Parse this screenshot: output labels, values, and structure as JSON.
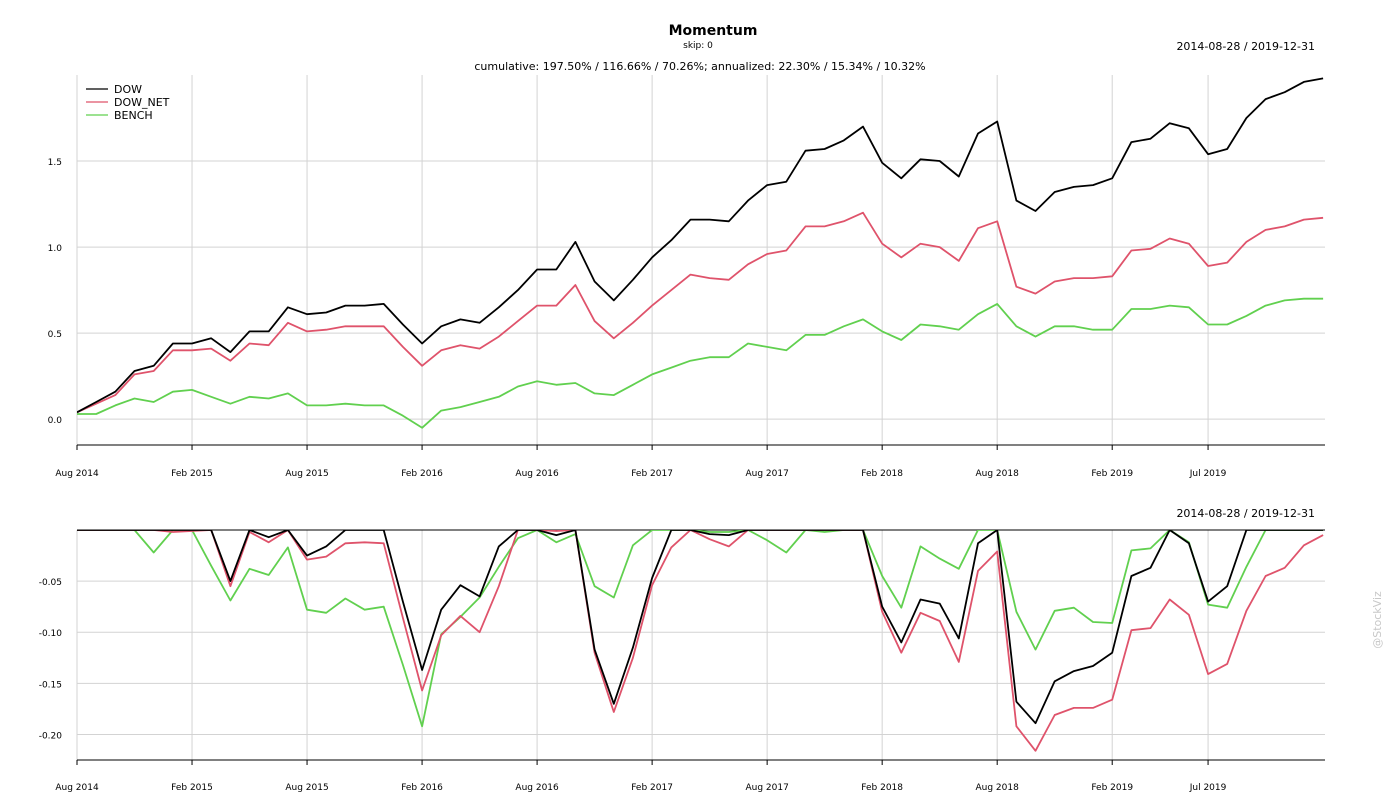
{
  "header": {
    "title": "Momentum",
    "subtitle": "skip: 0",
    "stats": "cumulative: 197.50% / 116.66% / 70.26%; annualized: 22.30% / 15.34% / 10.32%",
    "date_range_top": "2014-08-28 / 2019-12-31",
    "date_range_bottom": "2014-08-28 / 2019-12-31",
    "watermark": "@StockViz"
  },
  "colors": {
    "DOW": "#000000",
    "DOW_NET": "#df536b",
    "BENCH": "#61d04f",
    "grid": "#d3d3d3",
    "axis": "#000000"
  },
  "chart_data": [
    {
      "type": "line",
      "title": "Momentum",
      "subtitle": "skip: 0",
      "ylim": [
        -0.15,
        2.0
      ],
      "yticks": [
        0.0,
        0.5,
        1.0,
        1.5
      ],
      "ytick_labels": [
        "0.0",
        "0.5",
        "1.0",
        "1.5"
      ],
      "xlim": [
        0,
        65.1
      ],
      "xticks": [
        0,
        6,
        12,
        18,
        24,
        30,
        36,
        42,
        48,
        54,
        59
      ],
      "xtick_labels": [
        "Aug 2014",
        "Feb 2015",
        "Aug 2015",
        "Feb 2016",
        "Aug 2016",
        "Feb 2017",
        "Aug 2017",
        "Feb 2018",
        "Aug 2018",
        "Feb 2019",
        "Jul 2019"
      ],
      "legend_position": "top-left",
      "grid": true,
      "series": [
        {
          "name": "DOW",
          "x": [
            0,
            1,
            2,
            3,
            4,
            5,
            6,
            7,
            8,
            9,
            10,
            11,
            12,
            13,
            14,
            15,
            16,
            17,
            18,
            19,
            20,
            21,
            22,
            23,
            24,
            25,
            26,
            27,
            28,
            29,
            30,
            31,
            32,
            33,
            34,
            35,
            36,
            37,
            38,
            39,
            40,
            41,
            42,
            43,
            44,
            45,
            46,
            47,
            48,
            49,
            50,
            51,
            52,
            53,
            54,
            55,
            56,
            57,
            58,
            59,
            60,
            61,
            62,
            63,
            64,
            65
          ],
          "values": [
            0.04,
            0.1,
            0.16,
            0.28,
            0.31,
            0.44,
            0.44,
            0.47,
            0.39,
            0.51,
            0.51,
            0.65,
            0.61,
            0.62,
            0.66,
            0.66,
            0.67,
            0.55,
            0.44,
            0.54,
            0.58,
            0.56,
            0.65,
            0.75,
            0.87,
            0.87,
            1.03,
            0.8,
            0.69,
            0.81,
            0.94,
            1.04,
            1.16,
            1.16,
            1.15,
            1.27,
            1.36,
            1.38,
            1.56,
            1.57,
            1.62,
            1.7,
            1.49,
            1.4,
            1.51,
            1.5,
            1.41,
            1.66,
            1.73,
            1.27,
            1.21,
            1.32,
            1.35,
            1.36,
            1.4,
            1.61,
            1.63,
            1.72,
            1.69,
            1.54,
            1.57,
            1.75,
            1.86,
            1.9,
            1.96,
            1.98
          ]
        },
        {
          "name": "DOW_NET",
          "x": [
            0,
            1,
            2,
            3,
            4,
            5,
            6,
            7,
            8,
            9,
            10,
            11,
            12,
            13,
            14,
            15,
            16,
            17,
            18,
            19,
            20,
            21,
            22,
            23,
            24,
            25,
            26,
            27,
            28,
            29,
            30,
            31,
            32,
            33,
            34,
            35,
            36,
            37,
            38,
            39,
            40,
            41,
            42,
            43,
            44,
            45,
            46,
            47,
            48,
            49,
            50,
            51,
            52,
            53,
            54,
            55,
            56,
            57,
            58,
            59,
            60,
            61,
            62,
            63,
            64,
            65
          ],
          "values": [
            0.04,
            0.09,
            0.14,
            0.26,
            0.28,
            0.4,
            0.4,
            0.41,
            0.34,
            0.44,
            0.43,
            0.56,
            0.51,
            0.52,
            0.54,
            0.54,
            0.54,
            0.42,
            0.31,
            0.4,
            0.43,
            0.41,
            0.48,
            0.57,
            0.66,
            0.66,
            0.78,
            0.57,
            0.47,
            0.56,
            0.66,
            0.75,
            0.84,
            0.82,
            0.81,
            0.9,
            0.96,
            0.98,
            1.12,
            1.12,
            1.15,
            1.2,
            1.02,
            0.94,
            1.02,
            1.0,
            0.92,
            1.11,
            1.15,
            0.77,
            0.73,
            0.8,
            0.82,
            0.82,
            0.83,
            0.98,
            0.99,
            1.05,
            1.02,
            0.89,
            0.91,
            1.03,
            1.1,
            1.12,
            1.16,
            1.17
          ]
        },
        {
          "name": "BENCH",
          "x": [
            0,
            1,
            2,
            3,
            4,
            5,
            6,
            7,
            8,
            9,
            10,
            11,
            12,
            13,
            14,
            15,
            16,
            17,
            18,
            19,
            20,
            21,
            22,
            23,
            24,
            25,
            26,
            27,
            28,
            29,
            30,
            31,
            32,
            33,
            34,
            35,
            36,
            37,
            38,
            39,
            40,
            41,
            42,
            43,
            44,
            45,
            46,
            47,
            48,
            49,
            50,
            51,
            52,
            53,
            54,
            55,
            56,
            57,
            58,
            59,
            60,
            61,
            62,
            63,
            64,
            65
          ],
          "values": [
            0.03,
            0.03,
            0.08,
            0.12,
            0.1,
            0.16,
            0.17,
            0.13,
            0.09,
            0.13,
            0.12,
            0.15,
            0.08,
            0.08,
            0.09,
            0.08,
            0.08,
            0.02,
            -0.05,
            0.05,
            0.07,
            0.1,
            0.13,
            0.19,
            0.22,
            0.2,
            0.21,
            0.15,
            0.14,
            0.2,
            0.26,
            0.3,
            0.34,
            0.36,
            0.36,
            0.44,
            0.42,
            0.4,
            0.49,
            0.49,
            0.54,
            0.58,
            0.51,
            0.46,
            0.55,
            0.54,
            0.52,
            0.61,
            0.67,
            0.54,
            0.48,
            0.54,
            0.54,
            0.52,
            0.52,
            0.64,
            0.64,
            0.66,
            0.65,
            0.55,
            0.55,
            0.6,
            0.66,
            0.69,
            0.7,
            0.7
          ]
        }
      ]
    },
    {
      "type": "line",
      "ylim": [
        -0.225,
        0.0
      ],
      "yticks": [
        -0.2,
        -0.15,
        -0.1,
        -0.05
      ],
      "ytick_labels": [
        "-0.20",
        "-0.15",
        "-0.10",
        "-0.05"
      ],
      "xlim": [
        0,
        65.1
      ],
      "xticks": [
        0,
        6,
        12,
        18,
        24,
        30,
        36,
        42,
        48,
        54,
        59
      ],
      "xtick_labels": [
        "Aug 2014",
        "Feb 2015",
        "Aug 2015",
        "Feb 2016",
        "Aug 2016",
        "Feb 2017",
        "Aug 2017",
        "Feb 2018",
        "Aug 2018",
        "Feb 2019",
        "Jul 2019"
      ],
      "grid": true,
      "series": [
        {
          "name": "DOW",
          "x": [
            0,
            1,
            2,
            3,
            4,
            5,
            6,
            7,
            8,
            9,
            10,
            11,
            12,
            13,
            14,
            15,
            16,
            17,
            18,
            19,
            20,
            21,
            22,
            23,
            24,
            25,
            26,
            27,
            28,
            29,
            30,
            31,
            32,
            33,
            34,
            35,
            36,
            37,
            38,
            39,
            40,
            41,
            42,
            43,
            44,
            45,
            46,
            47,
            48,
            49,
            50,
            51,
            52,
            53,
            54,
            55,
            56,
            57,
            58,
            59,
            60,
            61,
            62,
            63,
            64,
            65
          ],
          "values": [
            0,
            0,
            0,
            0,
            0,
            0,
            0,
            0,
            -0.05,
            0,
            -0.007,
            0,
            -0.025,
            -0.016,
            0,
            0,
            0,
            -0.07,
            -0.137,
            -0.078,
            -0.054,
            -0.065,
            -0.016,
            0,
            0,
            -0.005,
            0,
            -0.117,
            -0.17,
            -0.115,
            -0.047,
            0,
            0,
            -0.004,
            -0.005,
            0,
            0,
            0,
            0,
            0,
            0,
            0,
            -0.075,
            -0.11,
            -0.068,
            -0.072,
            -0.106,
            -0.013,
            0,
            -0.168,
            -0.189,
            -0.148,
            -0.138,
            -0.133,
            -0.12,
            -0.045,
            -0.037,
            0,
            -0.013,
            -0.07,
            -0.055,
            0,
            0,
            0,
            0,
            0
          ]
        },
        {
          "name": "DOW_NET",
          "x": [
            0,
            1,
            2,
            3,
            4,
            5,
            6,
            7,
            8,
            9,
            10,
            11,
            12,
            13,
            14,
            15,
            16,
            17,
            18,
            19,
            20,
            21,
            22,
            23,
            24,
            25,
            26,
            27,
            28,
            29,
            30,
            31,
            32,
            33,
            34,
            35,
            36,
            37,
            38,
            39,
            40,
            41,
            42,
            43,
            44,
            45,
            46,
            47,
            48,
            49,
            50,
            51,
            52,
            53,
            54,
            55,
            56,
            57,
            58,
            59,
            60,
            61,
            62,
            63,
            64,
            65
          ],
          "values": [
            0,
            0,
            0,
            0,
            0,
            -0.002,
            -0.001,
            0,
            -0.055,
            -0.002,
            -0.012,
            0,
            -0.029,
            -0.026,
            -0.013,
            -0.012,
            -0.013,
            -0.086,
            -0.157,
            -0.103,
            -0.084,
            -0.1,
            -0.055,
            0,
            0,
            -0.001,
            0,
            -0.12,
            -0.178,
            -0.125,
            -0.054,
            -0.017,
            0,
            -0.009,
            -0.016,
            0,
            0,
            0,
            0,
            0,
            0,
            0,
            -0.08,
            -0.12,
            -0.081,
            -0.089,
            -0.129,
            -0.04,
            -0.021,
            -0.192,
            -0.216,
            -0.181,
            -0.174,
            -0.174,
            -0.166,
            -0.098,
            -0.096,
            -0.068,
            -0.083,
            -0.141,
            -0.131,
            -0.079,
            -0.045,
            -0.037,
            -0.015,
            -0.005
          ]
        },
        {
          "name": "BENCH",
          "x": [
            0,
            1,
            2,
            3,
            4,
            5,
            6,
            7,
            8,
            9,
            10,
            11,
            12,
            13,
            14,
            15,
            16,
            17,
            18,
            19,
            20,
            21,
            22,
            23,
            24,
            25,
            26,
            27,
            28,
            29,
            30,
            31,
            32,
            33,
            34,
            35,
            36,
            37,
            38,
            39,
            40,
            41,
            42,
            43,
            44,
            45,
            46,
            47,
            48,
            49,
            50,
            51,
            52,
            53,
            54,
            55,
            56,
            57,
            58,
            59,
            60,
            61,
            62,
            63,
            64,
            65
          ],
          "values": [
            0,
            0,
            0,
            0,
            -0.022,
            0,
            0,
            -0.035,
            -0.069,
            -0.038,
            -0.044,
            -0.017,
            -0.078,
            -0.081,
            -0.067,
            -0.078,
            -0.075,
            -0.132,
            -0.192,
            -0.102,
            -0.085,
            -0.066,
            -0.036,
            -0.008,
            0,
            -0.012,
            -0.004,
            -0.055,
            -0.066,
            -0.015,
            0,
            0,
            0,
            -0.002,
            -0.002,
            0,
            -0.01,
            -0.022,
            0,
            -0.002,
            0,
            0,
            -0.045,
            -0.076,
            -0.016,
            -0.028,
            -0.038,
            0,
            0,
            -0.08,
            -0.117,
            -0.079,
            -0.076,
            -0.09,
            -0.091,
            -0.02,
            -0.018,
            0,
            -0.012,
            -0.073,
            -0.076,
            -0.036,
            0,
            0,
            0,
            0
          ]
        }
      ]
    }
  ]
}
